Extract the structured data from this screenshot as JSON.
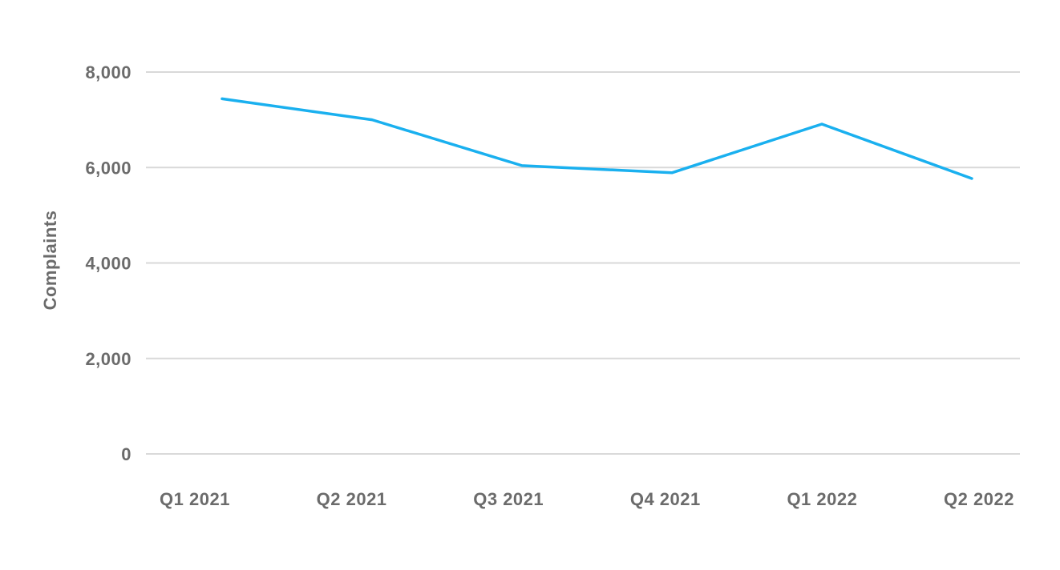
{
  "chart_data": {
    "type": "line",
    "title": "",
    "xlabel": "",
    "ylabel": "Complaints",
    "categories": [
      "Q1 2021",
      "Q2 2021",
      "Q3 2021",
      "Q4 2021",
      "Q1 2022",
      "Q2 2022"
    ],
    "series": [
      {
        "values": [
          7440,
          7000,
          6040,
          5890,
          6910,
          5770
        ],
        "color": "#1ab0ef"
      }
    ],
    "ylim": [
      0,
      8000
    ],
    "yticks": [
      0,
      2000,
      4000,
      6000,
      8000
    ],
    "ytick_labels": [
      "0",
      "2,000",
      "4,000",
      "6,000",
      "8,000"
    ],
    "grid": "horizontal",
    "legend": "none"
  }
}
